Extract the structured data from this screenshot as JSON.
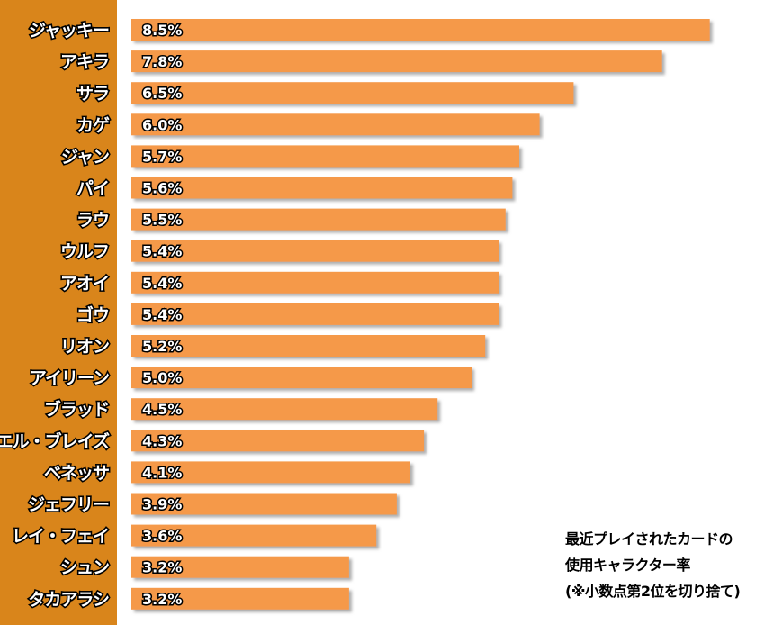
{
  "chart_data": {
    "type": "bar",
    "orientation": "horizontal",
    "categories": [
      "ジャッキー",
      "アキラ",
      "サラ",
      "カゲ",
      "ジャン",
      "パイ",
      "ラウ",
      "ウルフ",
      "アオイ",
      "ゴウ",
      "リオン",
      "アイリーン",
      "ブラッド",
      "エル・ブレイズ",
      "ベネッサ",
      "ジェフリー",
      "レイ・フェイ",
      "シュン",
      "タカアラシ"
    ],
    "values": [
      8.5,
      7.8,
      6.5,
      6.0,
      5.7,
      5.6,
      5.5,
      5.4,
      5.4,
      5.4,
      5.2,
      5.0,
      4.5,
      4.3,
      4.1,
      3.9,
      3.6,
      3.2,
      3.2
    ],
    "value_labels": [
      "8.5%",
      "7.8%",
      "6.5%",
      "6.0%",
      "5.7%",
      "5.6%",
      "5.5%",
      "5.4%",
      "5.4%",
      "5.4%",
      "5.2%",
      "5.0%",
      "4.5%",
      "4.3%",
      "4.1%",
      "3.9%",
      "3.6%",
      "3.2%",
      "3.2%"
    ],
    "xlim": [
      0,
      8.65
    ],
    "grid": false,
    "legend": "none",
    "colors": {
      "bar": "#f5994a",
      "bar_shadow": "#b8b8b8",
      "left_panel": "#d9851b"
    }
  },
  "caption": {
    "line1": "最近プレイされたカードの",
    "line2": "使用キャラクター率",
    "line3": "(※小数点第2位を切り捨て)"
  }
}
